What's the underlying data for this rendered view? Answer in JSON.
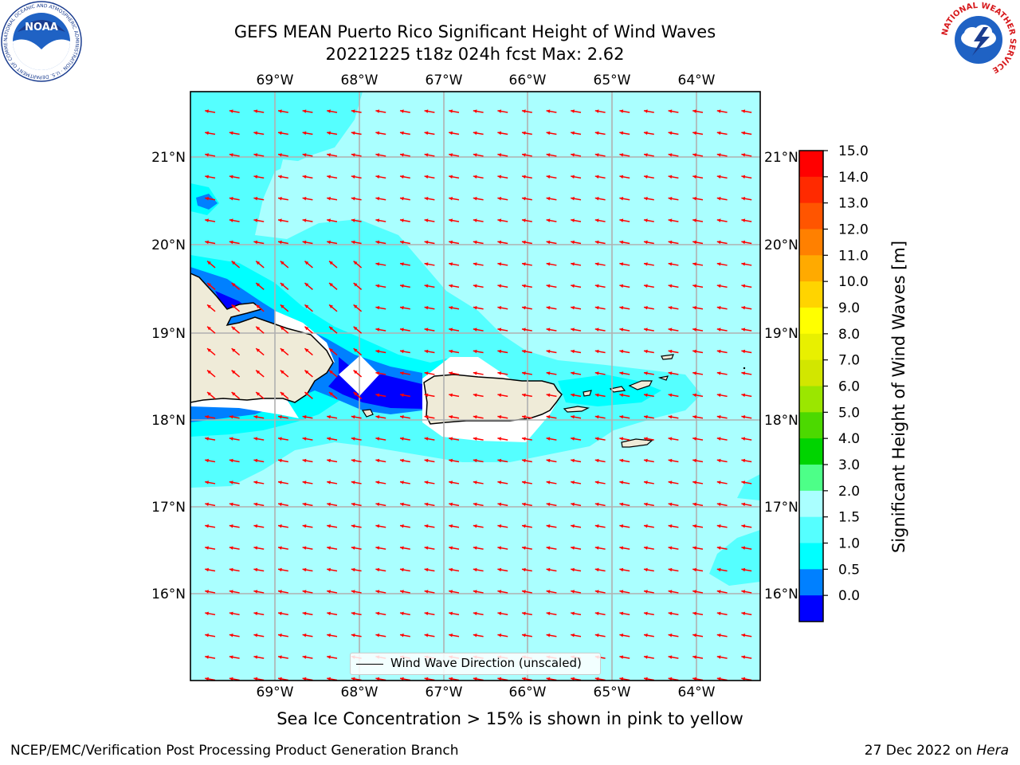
{
  "title": {
    "line1": "GEFS MEAN Puerto Rico Significant Height of Wind Waves",
    "line2": "20221225 t18z 024h fcst   Max: 2.62"
  },
  "map": {
    "lon_ticks": [
      "69°W",
      "68°W",
      "67°W",
      "66°W",
      "65°W",
      "64°W"
    ],
    "lat_ticks": [
      "21°N",
      "20°N",
      "19°N",
      "18°N",
      "17°N",
      "16°N"
    ],
    "legend_label": "Wind Wave Direction (unscaled)",
    "arrow_color": "#ff0000",
    "land_color": "#efebd8"
  },
  "colorbar": {
    "label": "Significant Height of Wind Waves [m]",
    "ticks": [
      "15.0",
      "14.0",
      "13.0",
      "12.0",
      "11.0",
      "10.0",
      "9.0",
      "8.0",
      "7.0",
      "6.0",
      "5.0",
      "4.0",
      "3.0",
      "2.0",
      "1.5",
      "1.0",
      "0.5",
      "0.0"
    ],
    "colors_top_to_bottom": [
      "#ff0000",
      "#ff2a00",
      "#ff5500",
      "#ff8000",
      "#ffaa00",
      "#ffd400",
      "#ffff00",
      "#e8f000",
      "#d2e600",
      "#9be600",
      "#4cd900",
      "#00d400",
      "#4dff88",
      "#aaffff",
      "#55ffff",
      "#00ffff",
      "#0080ff",
      "#0000ff"
    ]
  },
  "note": "Sea Ice Concentration > 15% is shown in pink to yellow",
  "footer": {
    "left": "NCEP/EMC/Verification Post Processing Product Generation Branch",
    "right_date": "27 Dec 2022 on ",
    "right_host": "Hera"
  },
  "logos": {
    "left": "NOAA",
    "left_ring": "NATIONAL OCEANIC AND ATMOSPHERIC ADMINISTRATION · U.S. DEPARTMENT OF COMMERCE",
    "right_ring": "NATIONAL WEATHER SERVICE"
  }
}
